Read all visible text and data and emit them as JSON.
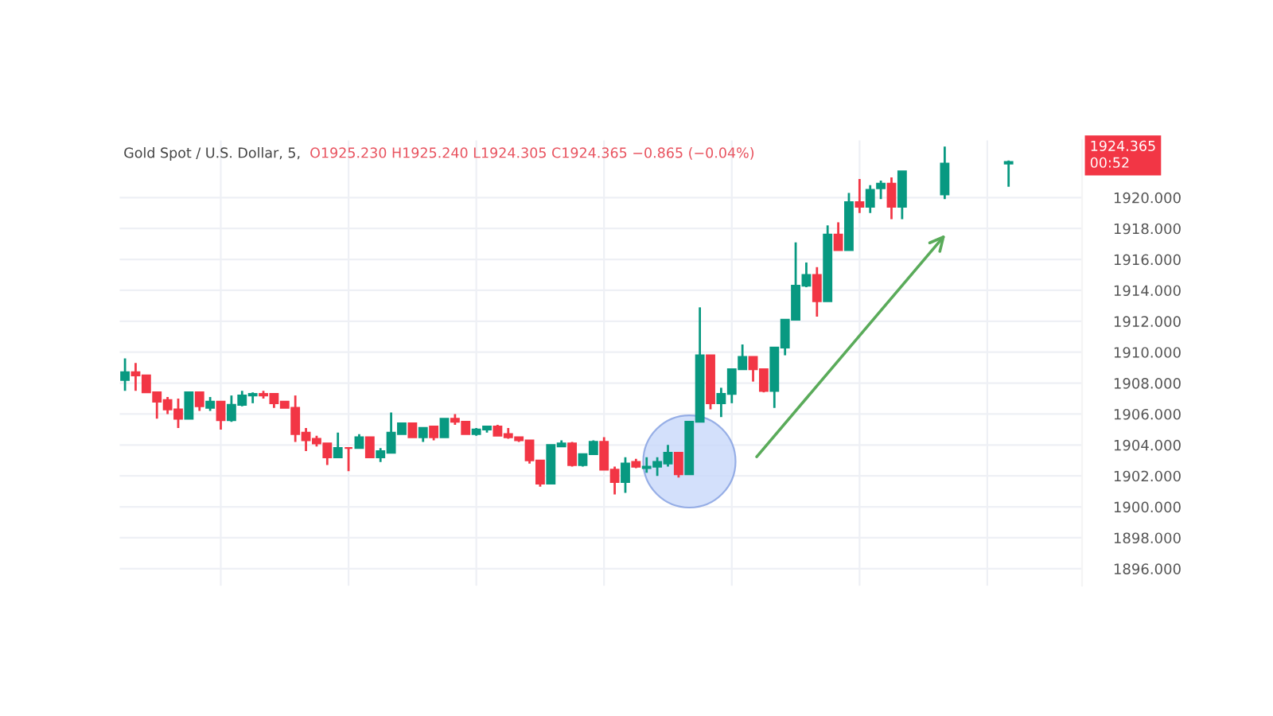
{
  "chart_data": {
    "type": "candlestick",
    "title": "Gold Spot / U.S. Dollar, 5,",
    "subtitle": "O1925.230 H1925.240 L1924.305 C1924.365 −0.865 (−0.04%)",
    "annotations": [
      "1924.365",
      "00:52"
    ],
    "categories": [
      null,
      null,
      null,
      null,
      null,
      null,
      null,
      null,
      null,
      null,
      null,
      null,
      null,
      null,
      null,
      null,
      null,
      null,
      null,
      null,
      null,
      null,
      null,
      null,
      null,
      null,
      null,
      null,
      null,
      null,
      null,
      null,
      null,
      null,
      null,
      null,
      null,
      null,
      null,
      null,
      null,
      null,
      null,
      null,
      null,
      null,
      null,
      null,
      null,
      null,
      null,
      null,
      null,
      null,
      null,
      null,
      null,
      null,
      null,
      null,
      null,
      null,
      null,
      null,
      null,
      null,
      null,
      null,
      null,
      null,
      null,
      null,
      null,
      null,
      null,
      null,
      null,
      null,
      null,
      null,
      null,
      null,
      null,
      null,
      null,
      null,
      null,
      null
    ],
    "ohlc": [
      [
        1908.2,
        1909.6,
        1907.5,
        1908.7
      ],
      [
        1908.7,
        1909.3,
        1907.5,
        1908.5
      ],
      [
        1908.5,
        1908.5,
        1907.4,
        1907.4
      ],
      [
        1907.4,
        1907.4,
        1905.7,
        1906.8
      ],
      [
        1906.9,
        1907.1,
        1906.0,
        1906.3
      ],
      [
        1906.3,
        1907.0,
        1905.1,
        1905.7
      ],
      [
        1905.7,
        1907.4,
        1905.7,
        1907.4
      ],
      [
        1907.4,
        1907.4,
        1906.2,
        1906.5
      ],
      [
        1906.4,
        1907.1,
        1906.2,
        1906.8
      ],
      [
        1906.8,
        1906.8,
        1905.0,
        1905.6
      ],
      [
        1905.6,
        1907.2,
        1905.5,
        1906.6
      ],
      [
        1906.6,
        1907.5,
        1906.5,
        1907.2
      ],
      [
        1907.2,
        1907.4,
        1906.7,
        1907.3
      ],
      [
        1907.3,
        1907.5,
        1907.0,
        1907.2
      ],
      [
        1907.3,
        1907.3,
        1906.4,
        1906.7
      ],
      [
        1906.8,
        1906.8,
        1906.4,
        1906.4
      ],
      [
        1906.4,
        1907.2,
        1904.2,
        1904.7
      ],
      [
        1904.8,
        1905.1,
        1903.6,
        1904.3
      ],
      [
        1904.4,
        1904.6,
        1903.9,
        1904.1
      ],
      [
        1904.1,
        1904.1,
        1902.7,
        1903.2
      ],
      [
        1903.2,
        1904.8,
        1903.2,
        1903.8
      ],
      [
        1903.8,
        1903.8,
        1902.3,
        1903.8
      ],
      [
        1903.8,
        1904.7,
        1903.8,
        1904.5
      ],
      [
        1904.5,
        1904.5,
        1903.2,
        1903.2
      ],
      [
        1903.2,
        1903.8,
        1902.9,
        1903.6
      ],
      [
        1903.5,
        1906.1,
        1903.5,
        1904.8
      ],
      [
        1904.7,
        1905.4,
        1904.7,
        1905.4
      ],
      [
        1905.4,
        1905.4,
        1904.5,
        1904.5
      ],
      [
        1904.5,
        1905.1,
        1904.2,
        1905.1
      ],
      [
        1905.2,
        1905.2,
        1904.3,
        1904.5
      ],
      [
        1904.5,
        1905.7,
        1904.5,
        1905.7
      ],
      [
        1905.7,
        1906.0,
        1905.3,
        1905.5
      ],
      [
        1905.5,
        1905.5,
        1904.7,
        1904.7
      ],
      [
        1904.7,
        1905.1,
        1904.6,
        1905.0
      ],
      [
        1905.0,
        1905.2,
        1904.8,
        1905.2
      ],
      [
        1905.2,
        1905.3,
        1904.6,
        1904.6
      ],
      [
        1904.7,
        1905.1,
        1904.4,
        1904.5
      ],
      [
        1904.5,
        1904.5,
        1904.2,
        1904.3
      ],
      [
        1904.3,
        1904.3,
        1902.8,
        1903.0
      ],
      [
        1903.0,
        1903.0,
        1901.3,
        1901.5
      ],
      [
        1901.5,
        1904.0,
        1901.5,
        1904.0
      ],
      [
        1903.9,
        1904.3,
        1903.9,
        1904.1
      ],
      [
        1904.1,
        1904.2,
        1902.6,
        1902.7
      ],
      [
        1902.7,
        1903.4,
        1902.6,
        1903.4
      ],
      [
        1903.4,
        1904.3,
        1903.4,
        1904.2
      ],
      [
        1904.2,
        1904.5,
        1902.4,
        1902.4
      ],
      [
        1902.4,
        1902.6,
        1900.8,
        1901.6
      ],
      [
        1901.6,
        1903.2,
        1900.9,
        1902.8
      ],
      [
        1902.9,
        1903.1,
        1902.5,
        1902.6
      ],
      [
        1902.5,
        1903.2,
        1902.2,
        1902.6
      ],
      [
        1902.6,
        1903.2,
        1902.0,
        1902.9
      ],
      [
        1902.8,
        1904.0,
        1902.6,
        1903.5
      ],
      [
        1903.5,
        1903.5,
        1901.9,
        1902.1
      ],
      [
        1902.1,
        1905.5,
        1902.1,
        1905.5
      ],
      [
        1905.5,
        1912.9,
        1905.5,
        1909.8
      ],
      [
        1909.8,
        1909.8,
        1906.3,
        1906.7
      ],
      [
        1906.7,
        1907.7,
        1905.8,
        1907.3
      ],
      [
        1907.3,
        1908.9,
        1906.7,
        1908.9
      ],
      [
        1908.9,
        1910.5,
        1908.9,
        1909.7
      ],
      [
        1909.7,
        1909.7,
        1908.1,
        1908.9
      ],
      [
        1908.9,
        1908.9,
        1907.4,
        1907.5
      ],
      [
        1907.5,
        1910.3,
        1906.4,
        1910.3
      ],
      [
        1910.3,
        1912.1,
        1909.8,
        1912.1
      ],
      [
        1912.1,
        1917.1,
        1912.1,
        1914.3
      ],
      [
        1914.3,
        1915.8,
        1914.2,
        1915.0
      ],
      [
        1915.0,
        1915.5,
        1912.3,
        1913.3
      ],
      [
        1913.3,
        1918.2,
        1913.3,
        1917.6
      ],
      [
        1917.6,
        1918.4,
        1916.6,
        1916.6
      ],
      [
        1916.6,
        1920.3,
        1916.6,
        1919.7
      ],
      [
        1919.7,
        1921.2,
        1919.0,
        1919.4
      ],
      [
        1919.4,
        1920.8,
        1919.0,
        1920.5
      ],
      [
        1920.6,
        1921.1,
        1919.9,
        1920.9
      ],
      [
        1920.9,
        1921.3,
        1918.6,
        1919.4
      ],
      [
        1919.4,
        1921.7,
        1918.6,
        1921.7
      ],
      null,
      null,
      null,
      [
        1920.2,
        1923.3,
        1919.9,
        1922.2
      ],
      null,
      null,
      null,
      null,
      null,
      [
        1922.2,
        1922.4,
        1920.7,
        1922.3
      ],
      null,
      null,
      null,
      null
    ],
    "colors": [
      "#089981",
      "#f23645",
      "#f23645",
      "#f23645",
      "#f23645",
      "#f23645",
      "#089981",
      "#f23645",
      "#089981",
      "#f23645",
      "#089981",
      "#089981",
      "#089981",
      "#f23645",
      "#f23645",
      "#f23645",
      "#f23645",
      "#f23645",
      "#f23645",
      "#f23645",
      "#089981",
      "#f23645",
      "#089981",
      "#f23645",
      "#089981",
      "#089981",
      "#089981",
      "#f23645",
      "#089981",
      "#f23645",
      "#089981",
      "#f23645",
      "#f23645",
      "#089981",
      "#089981",
      "#f23645",
      "#f23645",
      "#f23645",
      "#f23645",
      "#f23645",
      "#089981",
      "#089981",
      "#f23645",
      "#089981",
      "#089981",
      "#f23645",
      "#f23645",
      "#089981",
      "#f23645",
      "#089981",
      "#089981",
      "#089981",
      "#f23645",
      "#089981",
      "#089981",
      "#f23645",
      "#089981",
      "#089981",
      "#089981",
      "#f23645",
      "#f23645",
      "#089981",
      "#089981",
      "#089981",
      "#089981",
      "#f23645",
      "#089981",
      "#f23645",
      "#089981",
      "#f23645",
      "#089981",
      "#089981",
      "#f23645",
      "#089981",
      null,
      null,
      null,
      "#089981",
      null,
      null,
      null,
      null,
      null,
      "#089981",
      null,
      null,
      null,
      null
    ],
    "ylim": [
      1894.9,
      1923.7
    ],
    "yticks": [
      {
        "value": 1896,
        "label": "1896.000"
      },
      {
        "value": 1898,
        "label": "1898.000"
      },
      {
        "value": 1900,
        "label": "1900.000"
      },
      {
        "value": 1902,
        "label": "1902.000"
      },
      {
        "value": 1904,
        "label": "1904.000"
      },
      {
        "value": 1906,
        "label": "1906.000"
      },
      {
        "value": 1908,
        "label": "1908.000"
      },
      {
        "value": 1910,
        "label": "1910.000"
      },
      {
        "value": 1912,
        "label": "1912.000"
      },
      {
        "value": 1914,
        "label": "1914.000"
      },
      {
        "value": 1916,
        "label": "1916.000"
      },
      {
        "value": 1918,
        "label": "1918.000"
      },
      {
        "value": 1920,
        "label": "1920.000"
      }
    ],
    "grid": true,
    "tick_labels": "y"
  }
}
